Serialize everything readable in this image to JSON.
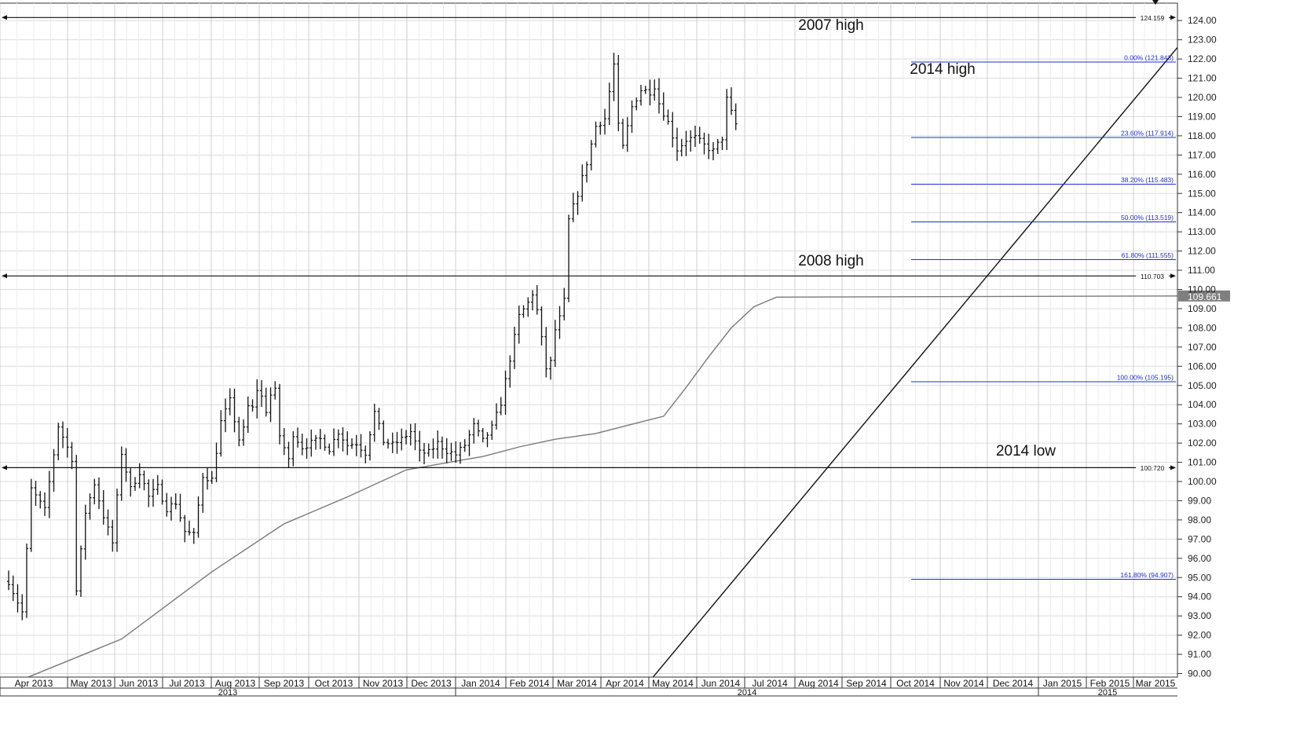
{
  "chart_data": {
    "type": "bar",
    "subtype": "daily OHLC price chart",
    "title": "",
    "xlabel": "",
    "ylabel": "",
    "ylim": [
      90,
      124
    ],
    "yticks": [
      "90.00",
      "91.00",
      "92.00",
      "93.00",
      "94.00",
      "95.00",
      "96.00",
      "97.00",
      "98.00",
      "99.00",
      "100.00",
      "101.00",
      "102.00",
      "103.00",
      "104.00",
      "105.00",
      "106.00",
      "107.00",
      "108.00",
      "109.00",
      "110.00",
      "111.00",
      "112.00",
      "113.00",
      "114.00",
      "115.00",
      "116.00",
      "117.00",
      "118.00",
      "119.00",
      "120.00",
      "121.00",
      "122.00",
      "123.00",
      "124.00"
    ],
    "months": [
      "Apr 2013",
      "May 2013",
      "Jun 2013",
      "Jul 2013",
      "Aug 2013",
      "Sep 2013",
      "Oct 2013",
      "Nov 2013",
      "Dec 2013",
      "Jan 2014",
      "Feb 2014",
      "Mar 2014",
      "Apr 2014",
      "May 2014",
      "Jun 2014",
      "Jul 2014",
      "Aug 2014",
      "Sep 2014",
      "Oct 2014",
      "Nov 2014",
      "Dec 2014",
      "Jan 2015",
      "Feb 2015",
      "Mar 2015"
    ],
    "years": [
      "2013",
      "2014",
      "2015"
    ],
    "price_path": [
      [
        0,
        94.8
      ],
      [
        3,
        93.2
      ],
      [
        5,
        99.6
      ],
      [
        8,
        98.5
      ],
      [
        11,
        102.9
      ],
      [
        14,
        101.2
      ],
      [
        15,
        94.3
      ],
      [
        17,
        98.4
      ],
      [
        19,
        99.9
      ],
      [
        21,
        98.2
      ],
      [
        23,
        96.8
      ],
      [
        25,
        101.5
      ],
      [
        27,
        99.6
      ],
      [
        29,
        100.5
      ],
      [
        31,
        99.2
      ],
      [
        33,
        99.7
      ],
      [
        35,
        98.6
      ],
      [
        37,
        98.9
      ],
      [
        39,
        97.4
      ],
      [
        41,
        97.2
      ],
      [
        43,
        100.3
      ],
      [
        45,
        100.1
      ],
      [
        47,
        103.1
      ],
      [
        49,
        104.2
      ],
      [
        51,
        102.2
      ],
      [
        52,
        102.7
      ],
      [
        53,
        103.9
      ],
      [
        54,
        103.8
      ],
      [
        55,
        104.8
      ],
      [
        56,
        104.4
      ],
      [
        57,
        103.7
      ],
      [
        58,
        104.5
      ],
      [
        59,
        104.7
      ],
      [
        60,
        102.4
      ],
      [
        62,
        101.1
      ],
      [
        63,
        102.5
      ],
      [
        65,
        101.8
      ],
      [
        67,
        102.0
      ],
      [
        69,
        102.2
      ],
      [
        71,
        101.7
      ],
      [
        73,
        102.6
      ],
      [
        75,
        101.9
      ],
      [
        77,
        102.0
      ],
      [
        79,
        101.5
      ],
      [
        81,
        103.6
      ],
      [
        83,
        102.1
      ],
      [
        85,
        101.9
      ],
      [
        87,
        102.2
      ],
      [
        89,
        102.6
      ],
      [
        91,
        101.5
      ],
      [
        93,
        101.5
      ],
      [
        95,
        102.0
      ],
      [
        97,
        101.6
      ],
      [
        99,
        101.4
      ],
      [
        101,
        101.9
      ],
      [
        103,
        102.9
      ],
      [
        105,
        102.1
      ],
      [
        107,
        102.8
      ],
      [
        109,
        104.1
      ],
      [
        111,
        106.4
      ],
      [
        113,
        108.6
      ],
      [
        115,
        109.3
      ],
      [
        116,
        109.8
      ],
      [
        117,
        108.9
      ],
      [
        119,
        105.9
      ],
      [
        120,
        106.2
      ],
      [
        121,
        107.9
      ],
      [
        122,
        108.5
      ],
      [
        123,
        109.4
      ],
      [
        124,
        113.6
      ],
      [
        126,
        115.0
      ],
      [
        128,
        116.6
      ],
      [
        130,
        118.5
      ],
      [
        132,
        118.9
      ],
      [
        134,
        121.7
      ],
      [
        135,
        118.5
      ],
      [
        136,
        117.4
      ],
      [
        138,
        119.5
      ],
      [
        140,
        120.4
      ],
      [
        142,
        120.3
      ],
      [
        143,
        120.6
      ],
      [
        144,
        119.7
      ],
      [
        146,
        118.7
      ],
      [
        148,
        117.3
      ],
      [
        150,
        117.8
      ],
      [
        152,
        117.9
      ],
      [
        154,
        117.5
      ],
      [
        156,
        117.2
      ],
      [
        158,
        117.9
      ],
      [
        159,
        119.9
      ],
      [
        160,
        119.2
      ],
      [
        161,
        118.6
      ]
    ],
    "moving_average_path": [
      [
        0,
        89.4
      ],
      [
        25,
        91.8
      ],
      [
        45,
        95.3
      ],
      [
        61,
        97.8
      ],
      [
        75,
        99.2
      ],
      [
        88,
        100.6
      ],
      [
        100,
        101.1
      ],
      [
        105,
        101.3
      ],
      [
        113,
        101.8
      ],
      [
        121,
        102.2
      ],
      [
        130,
        102.5
      ],
      [
        140,
        103.1
      ],
      [
        145,
        103.4
      ],
      [
        150,
        104.9
      ],
      [
        155,
        106.5
      ],
      [
        160,
        108.0
      ],
      [
        165,
        109.1
      ],
      [
        170,
        109.6
      ]
    ],
    "moving_average_last": "109.661",
    "horizontal_lines": [
      {
        "label": "2007 high",
        "value": 124.159,
        "value_label": "124.159"
      },
      {
        "label": "2008 high",
        "value": 110.703,
        "value_label": "110.703"
      },
      {
        "label": "2014 low",
        "value": 100.72,
        "value_label": "100.720"
      }
    ],
    "annotations": [
      "2007 high",
      "2014 high",
      "2008 high",
      "2014 low"
    ],
    "fibonacci_levels": [
      {
        "label": "0.00% (121.843)",
        "value": 121.843
      },
      {
        "label": "23.60% (117.914)",
        "value": 117.914
      },
      {
        "label": "38.20% (115.483)",
        "value": 115.483
      },
      {
        "label": "50.00% (113.519)",
        "value": 113.519
      },
      {
        "label": "61.80% (111.555)",
        "value": 111.555
      },
      {
        "label": "100.00% (105.195)",
        "value": 105.195
      },
      {
        "label": "161.80% (94.907)",
        "value": 94.907
      }
    ],
    "trendline": {
      "from": [
        "May 2014",
        90.0
      ],
      "to": [
        "Oct 2014",
        105.9
      ]
    },
    "grid": true
  }
}
